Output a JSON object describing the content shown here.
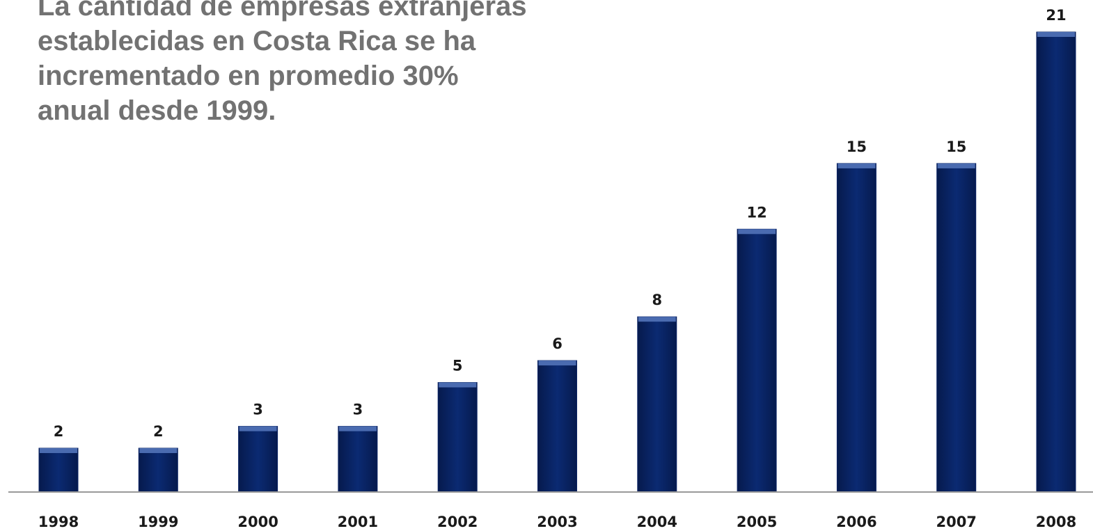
{
  "headline": {
    "lines": [
      "La cantidad de empresas extranjeras",
      "establecidas en Costa Rica se ha",
      "incrementado en promedio 30%",
      "anual desde 1999."
    ]
  },
  "colors": {
    "bar": "#0b2466",
    "bar_top": "#4a6bb0",
    "baseline": "#9a9a9a",
    "headline": "#727272"
  },
  "chart_data": {
    "type": "bar",
    "title": "",
    "xlabel": "",
    "ylabel": "",
    "categories": [
      "1998",
      "1999",
      "2000",
      "2001",
      "2002",
      "2003",
      "2004",
      "2005",
      "2006",
      "2007",
      "2008"
    ],
    "values": [
      2,
      2,
      3,
      3,
      5,
      6,
      8,
      12,
      15,
      15,
      21
    ],
    "ylim": [
      0,
      21
    ],
    "grid": false,
    "legend": "none",
    "data_labels": true
  }
}
